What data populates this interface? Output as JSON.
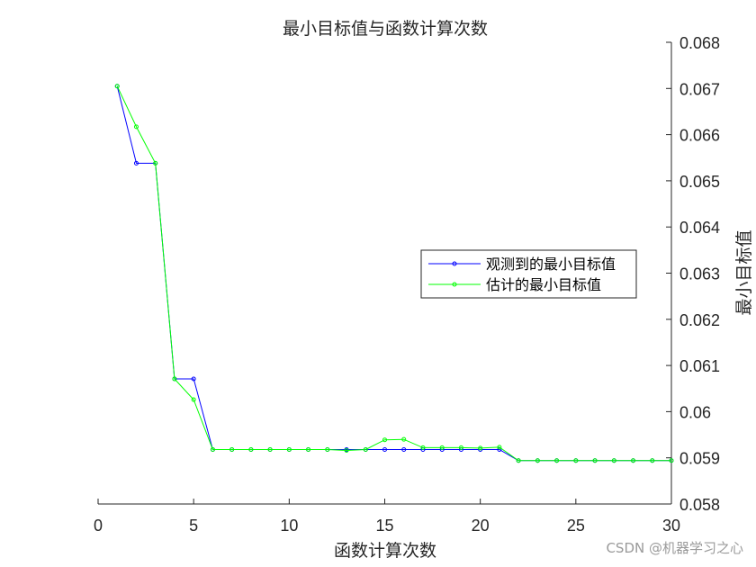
{
  "chart_data": {
    "type": "line",
    "title": "最小目标值与函数计算次数",
    "xlabel": "函数计算次数",
    "ylabel": "最小目标值",
    "xlim": [
      0,
      30
    ],
    "ylim": [
      0.058,
      0.068
    ],
    "x_ticks": [
      "0",
      "5",
      "10",
      "15",
      "20",
      "25",
      "30"
    ],
    "y_ticks": [
      "0.058",
      "0.059",
      "0.06",
      "0.061",
      "0.062",
      "0.063",
      "0.064",
      "0.065",
      "0.066",
      "0.067",
      "0.068"
    ],
    "y_axis_location": "right",
    "grid": false,
    "legend_position": "right",
    "x": [
      1,
      2,
      3,
      4,
      5,
      6,
      7,
      8,
      9,
      10,
      11,
      12,
      13,
      14,
      15,
      16,
      17,
      18,
      19,
      20,
      21,
      22,
      23,
      24,
      25,
      26,
      27,
      28,
      29,
      30
    ],
    "series": [
      {
        "name": "观测到的最小目标值",
        "color": "#0000ff",
        "values": [
          0.06705,
          0.06538,
          0.06538,
          0.06071,
          0.06071,
          0.05918,
          0.05918,
          0.05918,
          0.05918,
          0.05918,
          0.05918,
          0.05918,
          0.05918,
          0.05918,
          0.05918,
          0.05918,
          0.05918,
          0.05918,
          0.05918,
          0.05918,
          0.05918,
          0.05894,
          0.05894,
          0.05894,
          0.05894,
          0.05894,
          0.05894,
          0.05894,
          0.05894,
          0.05894
        ]
      },
      {
        "name": "估计的最小目标值",
        "color": "#00ff00",
        "values": [
          0.06705,
          0.06617,
          0.06538,
          0.06071,
          0.06026,
          0.05918,
          0.05918,
          0.05918,
          0.05918,
          0.05918,
          0.05918,
          0.05918,
          0.05916,
          0.05918,
          0.05939,
          0.0594,
          0.05922,
          0.05922,
          0.05922,
          0.05921,
          0.05923,
          0.05894,
          0.05894,
          0.05894,
          0.05894,
          0.05894,
          0.05894,
          0.05894,
          0.05894,
          0.05894
        ]
      }
    ]
  },
  "watermark": "CSDN @机器学习之心"
}
